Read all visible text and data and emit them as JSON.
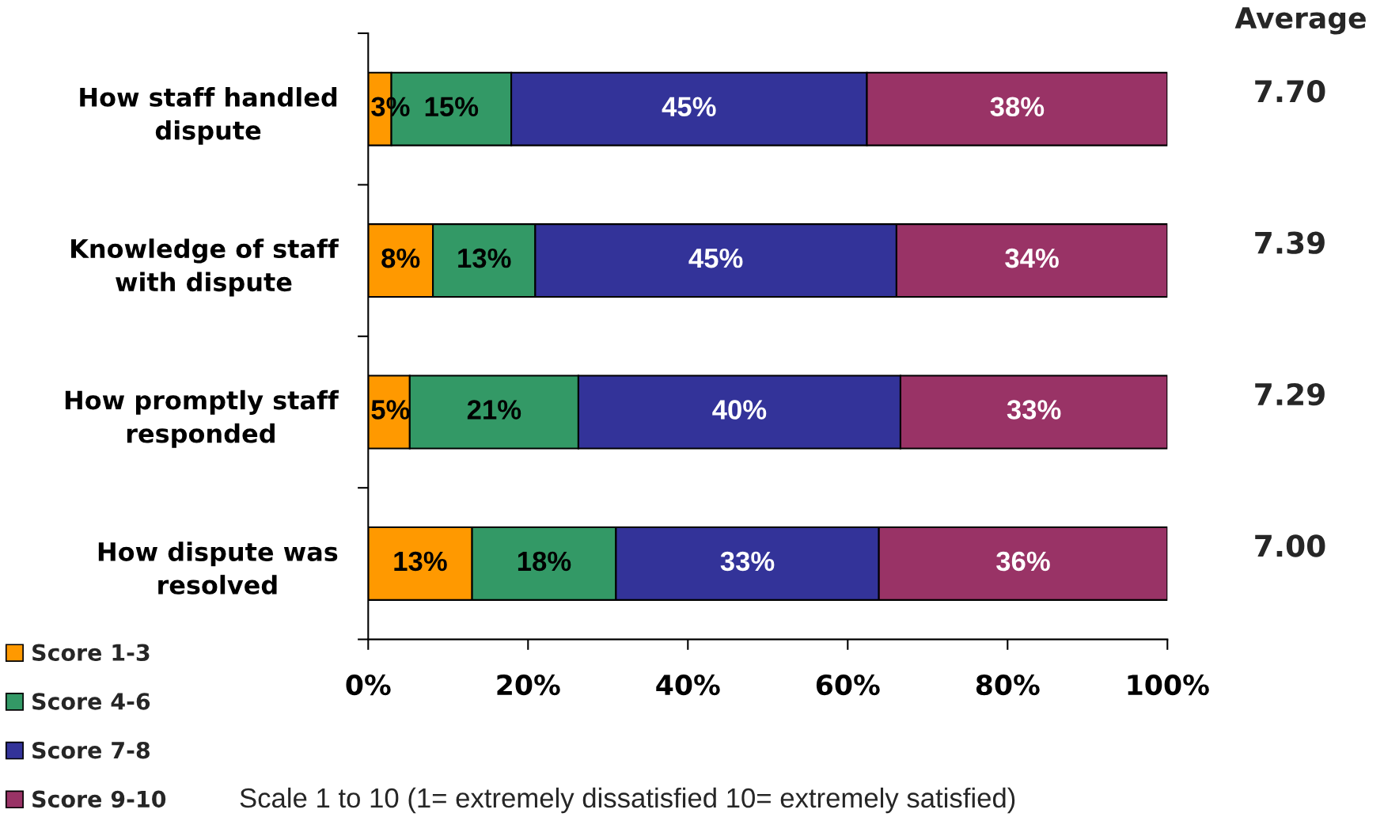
{
  "chart_data": {
    "type": "bar",
    "orientation": "horizontal",
    "stacked": true,
    "categories": [
      "How staff handled\ndispute",
      "Knowledge of staff\nwith dispute",
      "How promptly staff\nresponded",
      "How dispute was\nresolved"
    ],
    "series": [
      {
        "name": "Score 1-3",
        "color": "#ff9900",
        "values": [
          2.9,
          8.1,
          5.2,
          13.0
        ],
        "value_labels": [
          "3%",
          "8%",
          "5%",
          "13%"
        ]
      },
      {
        "name": "Score 4-6",
        "color": "#339966",
        "values": [
          15.0,
          12.8,
          21.1,
          18.0
        ],
        "value_labels": [
          "15%",
          "13%",
          "21%",
          "18%"
        ]
      },
      {
        "name": "Score 7-8",
        "color": "#333399",
        "values": [
          44.5,
          45.2,
          40.3,
          32.9
        ],
        "value_labels": [
          "45%",
          "45%",
          "40%",
          "33%"
        ]
      },
      {
        "name": "Score 9-10",
        "color": "#993366",
        "values": [
          37.6,
          33.9,
          33.4,
          36.1
        ],
        "value_labels": [
          "38%",
          "34%",
          "33%",
          "36%"
        ]
      }
    ],
    "xlim": [
      0,
      100
    ],
    "xticks": [
      {
        "value": 0,
        "label": "0%"
      },
      {
        "value": 20,
        "label": "20%"
      },
      {
        "value": 40,
        "label": "40%"
      },
      {
        "value": 60,
        "label": "60%"
      },
      {
        "value": 80,
        "label": "80%"
      },
      {
        "value": 100,
        "label": "100%"
      }
    ],
    "legend": "bottom left",
    "annotations": [
      "Average",
      "7.70",
      "7.39",
      "7.29",
      "7.00",
      "Scale 1 to 10 (1= extremely dissatisfied 10= extremely satisfied)"
    ]
  }
}
